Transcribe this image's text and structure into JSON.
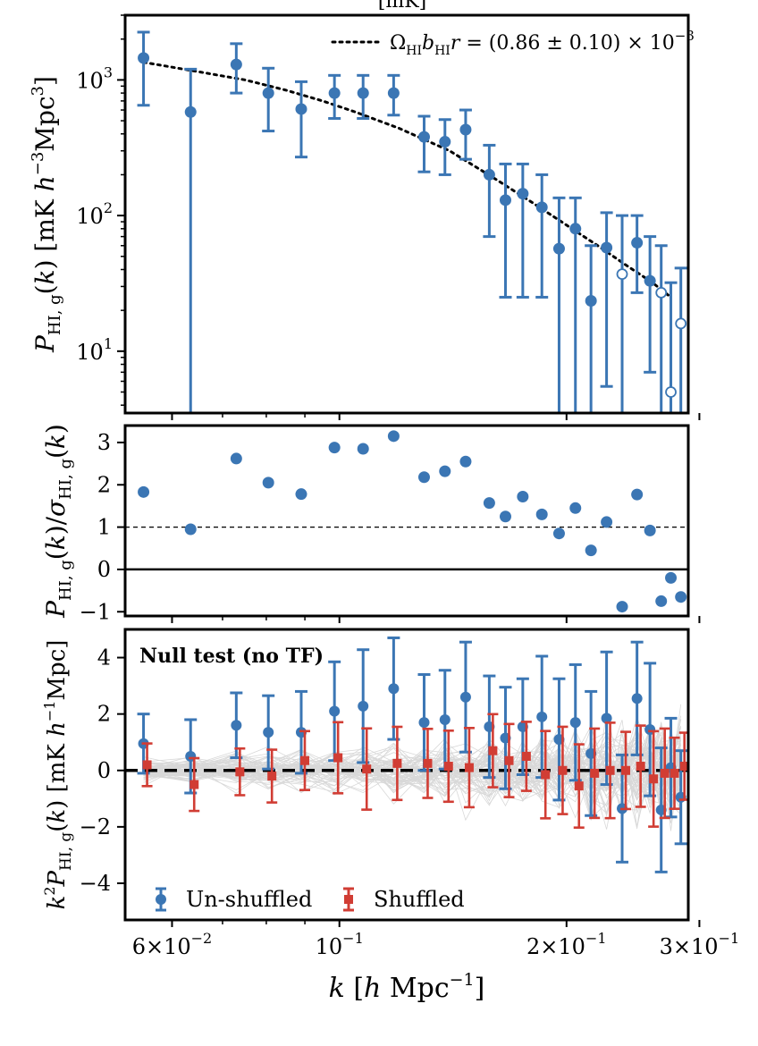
{
  "chart_data": [
    {
      "type": "scatter",
      "panel": "top",
      "ylabel": "P_HI,g(k) [mK h^-3 Mpc^3]",
      "yscale": "log",
      "xscale": "log",
      "ylim": [
        3.5,
        3000
      ],
      "xlim": [
        0.052,
        0.29
      ],
      "yticks": [
        {
          "v": 10,
          "m": "10",
          "e": "1"
        },
        {
          "v": 100,
          "m": "10",
          "e": "2"
        },
        {
          "v": 1000,
          "m": "10",
          "e": "3"
        }
      ],
      "partial_title": "[mK]",
      "legend": {
        "position": "top-right",
        "label": "Ω_HI b_HI r = (0.86 ± 0.10) × 10^-3"
      },
      "model_curve": {
        "name": "Ω_HI b_HI r = (0.86 ± 0.10) × 10^-3",
        "x": [
          0.055,
          0.065,
          0.075,
          0.085,
          0.095,
          0.105,
          0.12,
          0.14,
          0.16,
          0.18,
          0.2,
          0.22,
          0.24,
          0.26,
          0.275
        ],
        "y": [
          1350,
          1150,
          1000,
          840,
          700,
          580,
          440,
          300,
          190,
          125,
          85,
          60,
          43,
          32,
          25
        ]
      },
      "series": [
        {
          "name": "P_HI,g(k)",
          "x": [
            0.055,
            0.0635,
            0.073,
            0.0805,
            0.089,
            0.0985,
            0.1075,
            0.118,
            0.1295,
            0.138,
            0.147,
            0.158,
            0.166,
            0.175,
            0.1855,
            0.1955,
            0.2055,
            0.2155,
            0.226,
            0.237,
            0.248,
            0.258,
            0.267,
            0.275,
            0.2835
          ],
          "y": [
            1450,
            580,
            1300,
            800,
            610,
            800,
            800,
            800,
            380,
            350,
            430,
            200,
            130,
            145,
            115,
            57,
            80,
            23.5,
            58,
            37,
            63,
            33,
            27,
            5,
            16
          ],
          "ylow": [
            650,
            3.5,
            800,
            420,
            270,
            520,
            520,
            550,
            210,
            200,
            260,
            70,
            25,
            25,
            25,
            3.5,
            3.5,
            3.5,
            5.5,
            3.5,
            27,
            7,
            3.5,
            3.5,
            3.5
          ],
          "yhigh": [
            2250,
            1200,
            1850,
            1220,
            970,
            1080,
            1080,
            1080,
            540,
            510,
            600,
            330,
            240,
            240,
            200,
            135,
            135,
            60,
            105,
            100,
            100,
            70,
            60,
            32,
            41
          ],
          "open": [
            false,
            false,
            false,
            false,
            false,
            false,
            false,
            false,
            false,
            false,
            false,
            false,
            false,
            false,
            false,
            false,
            false,
            false,
            false,
            true,
            false,
            false,
            true,
            true,
            true
          ]
        }
      ]
    },
    {
      "type": "scatter",
      "panel": "middle",
      "ylabel": "P_HI,g(k)/σ_HI,g(k)",
      "ylim": [
        -1.1,
        3.4
      ],
      "yticks": [
        "-1",
        "0",
        "1",
        "2",
        "3"
      ],
      "reference_lines": [
        {
          "y": 1,
          "style": "dashed"
        },
        {
          "y": 0,
          "style": "solid"
        }
      ],
      "series": [
        {
          "name": "P_HI,g(k)/σ_HI,g(k)",
          "x": [
            0.055,
            0.0635,
            0.073,
            0.0805,
            0.089,
            0.0985,
            0.1075,
            0.118,
            0.1295,
            0.138,
            0.147,
            0.158,
            0.166,
            0.175,
            0.1855,
            0.1955,
            0.2055,
            0.2155,
            0.226,
            0.237,
            0.248,
            0.258,
            0.267,
            0.275,
            0.2835
          ],
          "y": [
            1.83,
            0.95,
            2.62,
            2.05,
            1.78,
            2.88,
            2.85,
            3.15,
            2.18,
            2.32,
            2.55,
            1.57,
            1.25,
            1.72,
            1.3,
            0.85,
            1.45,
            0.45,
            1.12,
            -0.88,
            1.77,
            0.92,
            -0.75,
            -0.2,
            -0.65
          ]
        }
      ]
    },
    {
      "type": "scatter",
      "panel": "bottom",
      "annotation": "Null test (no TF)",
      "ylabel": "k^2 P_HI,g(k) [mK h^-1 Mpc]",
      "xlabel": "k [h Mpc^-1]",
      "ylim": [
        -5.3,
        5.0
      ],
      "yticks": [
        "-4",
        "-2",
        "0",
        "2",
        "4"
      ],
      "xticks": [
        {
          "v": 0.06,
          "m": "6×10",
          "e": "−2"
        },
        {
          "v": 0.1,
          "m": "10",
          "e": "−1"
        },
        {
          "v": 0.2,
          "m": "2×10",
          "e": "−1"
        },
        {
          "v": 0.3,
          "m": "3×10",
          "e": "−1"
        }
      ],
      "legend": {
        "position": "bottom-left"
      },
      "series": [
        {
          "name": "Un-shuffled",
          "color": "#3b76b4",
          "x": [
            0.055,
            0.0635,
            0.073,
            0.0805,
            0.089,
            0.0985,
            0.1075,
            0.118,
            0.1295,
            0.138,
            0.147,
            0.158,
            0.166,
            0.175,
            0.1855,
            0.1955,
            0.2055,
            0.2155,
            0.226,
            0.237,
            0.248,
            0.258,
            0.267,
            0.275,
            0.2835
          ],
          "y": [
            0.95,
            0.5,
            1.6,
            1.35,
            1.35,
            2.1,
            2.28,
            2.9,
            1.7,
            1.8,
            2.6,
            1.55,
            1.15,
            1.55,
            1.9,
            1.1,
            1.7,
            0.6,
            1.85,
            -1.35,
            2.55,
            1.45,
            -1.4,
            0.1,
            -0.95
          ],
          "yerr": [
            1.05,
            1.3,
            1.15,
            1.3,
            1.45,
            1.75,
            2.0,
            1.8,
            1.7,
            1.75,
            1.95,
            1.8,
            1.8,
            1.7,
            2.15,
            2.15,
            2.05,
            2.2,
            2.35,
            1.9,
            2.0,
            2.35,
            2.2,
            1.75,
            1.65
          ]
        },
        {
          "name": "Shuffled",
          "color": "#d13d34",
          "x": [
            0.055,
            0.0635,
            0.073,
            0.0805,
            0.089,
            0.0985,
            0.1075,
            0.118,
            0.1295,
            0.138,
            0.147,
            0.158,
            0.166,
            0.175,
            0.1855,
            0.1955,
            0.2055,
            0.2155,
            0.226,
            0.237,
            0.248,
            0.258,
            0.267,
            0.275,
            0.2835
          ],
          "y": [
            0.2,
            -0.5,
            -0.05,
            -0.2,
            0.35,
            0.45,
            0.05,
            0.25,
            0.25,
            0.15,
            0.1,
            0.7,
            0.35,
            0.5,
            -0.15,
            0.0,
            -0.55,
            -0.1,
            0.0,
            0.0,
            0.15,
            -0.3,
            -0.1,
            -0.1,
            0.15
          ]
        }
      ]
    }
  ]
}
